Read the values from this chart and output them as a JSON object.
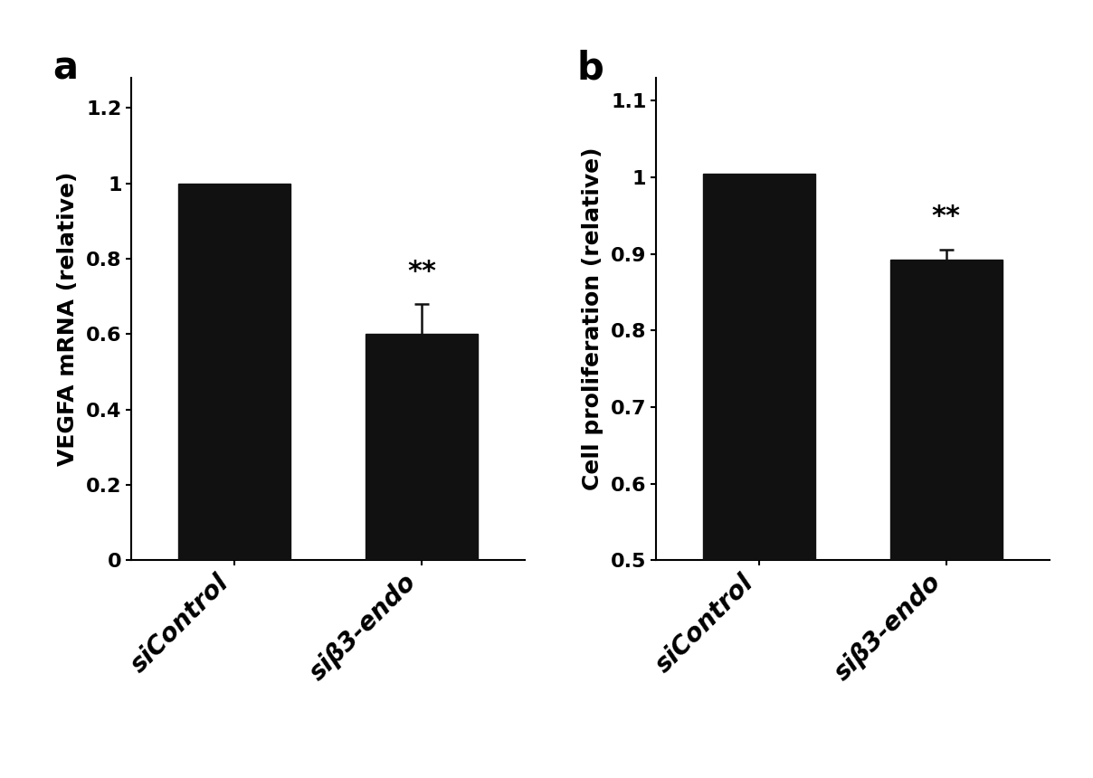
{
  "panel_a": {
    "label": "a",
    "categories": [
      "siControl",
      "siβ3-endo"
    ],
    "values": [
      1.0,
      0.6
    ],
    "errors": [
      0.0,
      0.08
    ],
    "ylabel": "VEGFA mRNA (relative)",
    "ylim": [
      0,
      1.28
    ],
    "yticks": [
      0,
      0.2,
      0.4,
      0.6,
      0.8,
      1.0,
      1.2
    ],
    "ytick_labels": [
      "0",
      "0.2",
      "0.4",
      "0.6",
      "0.8",
      "1",
      "1.2"
    ],
    "significance": [
      "",
      "**"
    ],
    "bar_color": "#111111",
    "bar_width": 0.6,
    "error_color": "#111111",
    "capsize": 6
  },
  "panel_b": {
    "label": "b",
    "categories": [
      "siControl",
      "siβ3-endo"
    ],
    "values": [
      1.005,
      0.893
    ],
    "errors": [
      0.0,
      0.013
    ],
    "ylabel": "Cell proliferation (relative)",
    "ylim": [
      0.5,
      1.13
    ],
    "yticks": [
      0.5,
      0.6,
      0.7,
      0.8,
      0.9,
      1.0,
      1.1
    ],
    "ytick_labels": [
      "0.5",
      "0.6",
      "0.7",
      "0.8",
      "0.9",
      "1",
      "1.1"
    ],
    "significance": [
      "",
      "**"
    ],
    "bar_color": "#111111",
    "bar_width": 0.6,
    "error_color": "#111111",
    "capsize": 6
  },
  "background_color": "#ffffff",
  "xticklabel_fontsize": 20,
  "yticklabel_fontsize": 16,
  "ylabel_fontsize": 18,
  "sig_fontsize": 22,
  "panel_label_fontsize": 30
}
